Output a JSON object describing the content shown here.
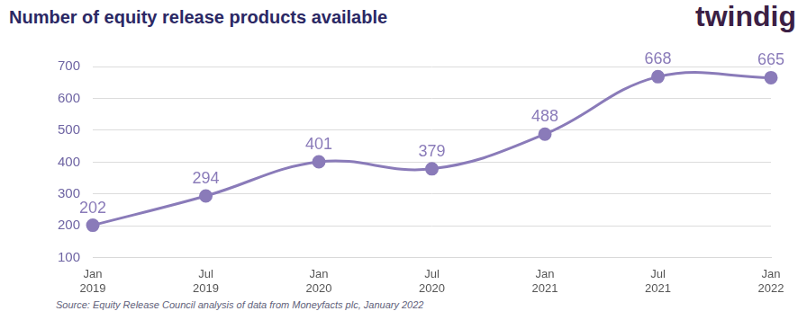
{
  "chart_data": {
    "type": "line",
    "title": "Number of equity release products available",
    "logo": "twindig",
    "source": "Source: Equity Release Council analysis of data from Moneyfacts plc, January 2022",
    "categories": [
      "Jan 2019",
      "Jul 2019",
      "Jan 2020",
      "Jul 2020",
      "Jan 2021",
      "Jul 2021",
      "Jan 2022"
    ],
    "values": [
      202,
      294,
      401,
      379,
      488,
      668,
      665
    ],
    "color": "#8a7bb9",
    "ylim": [
      100,
      700
    ],
    "yticks": [
      100,
      200,
      300,
      400,
      500,
      600,
      700
    ],
    "grid": true,
    "data_labels": true,
    "marker": "circle",
    "line_style": "solid"
  }
}
